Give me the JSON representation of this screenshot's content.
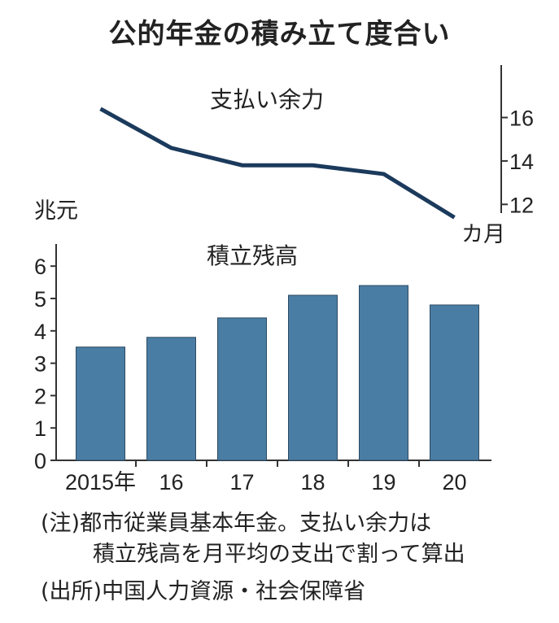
{
  "title": "公的年金の積み立て度合い",
  "notes": [
    "(注)都市従業員基本年金。支払い余力は",
    "積立残高を月平均の支出で割って算出"
  ],
  "source": "(出所)中国人力資源・社会保障省",
  "colors": {
    "line": "#1b3a5c",
    "bar": "#4a7da3",
    "axis": "#333333"
  },
  "chart_data": [
    {
      "type": "line",
      "series": [
        {
          "name": "支払い余力",
          "values": [
            16.4,
            14.6,
            13.8,
            13.8,
            13.4,
            11.4
          ]
        }
      ],
      "categories": [
        "2015年",
        "16",
        "17",
        "18",
        "19",
        "20"
      ],
      "ylabel": "カ月",
      "yticks": [
        12,
        14,
        16
      ],
      "ylim": [
        11,
        17
      ]
    },
    {
      "type": "bar",
      "series": [
        {
          "name": "積立残高",
          "values": [
            3.5,
            3.8,
            4.4,
            5.1,
            5.4,
            4.8
          ]
        }
      ],
      "categories": [
        "2015年",
        "16",
        "17",
        "18",
        "19",
        "20"
      ],
      "ylabel": "兆元",
      "yticks": [
        0,
        1,
        2,
        3,
        4,
        5,
        6
      ],
      "ylim": [
        0,
        6.6
      ]
    }
  ]
}
